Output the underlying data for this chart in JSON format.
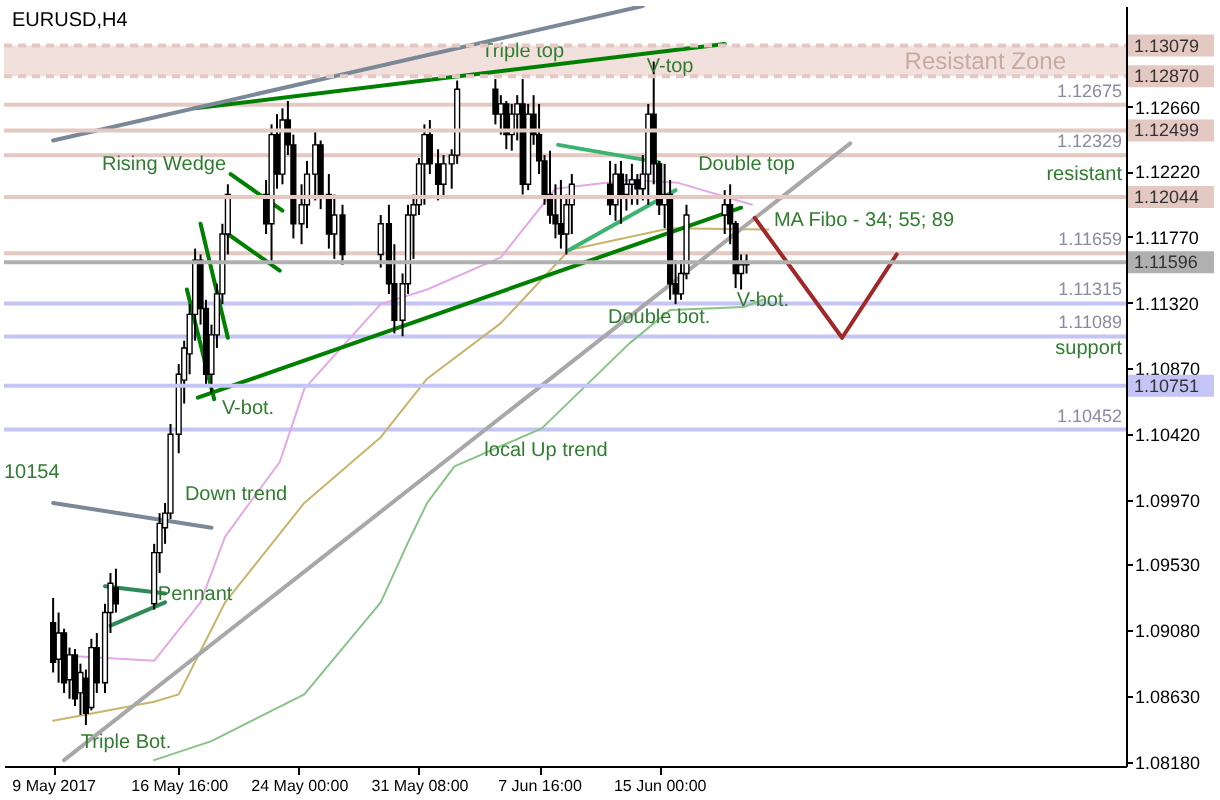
{
  "chart_data": {
    "type": "candlestick",
    "title": "EURUSD,H4",
    "x": [
      "2017-05-09T00:00",
      "2017-05-09T08:00",
      "2017-05-09T16:00",
      "2017-05-10T00:00",
      "2017-05-10T08:00",
      "2017-05-10T16:00",
      "2017-05-11T00:00",
      "2017-05-11T08:00",
      "2017-05-11T16:00",
      "2017-05-12T04:00",
      "2017-05-12T12:00",
      "2017-05-12T20:00",
      "2017-05-15T04:00",
      "2017-05-15T12:00",
      "2017-05-15T20:00",
      "2017-05-16T04:00",
      "2017-05-16T16:00",
      "2017-05-17T00:00",
      "2017-05-17T08:00",
      "2017-05-17T16:00",
      "2017-05-18T00:00",
      "2017-05-18T08:00",
      "2017-05-18T16:00",
      "2017-05-19T00:00",
      "2017-05-19T08:00",
      "2017-05-19T16:00",
      "2017-05-22T00:00",
      "2017-05-22T08:00",
      "2017-05-22T16:00",
      "2017-05-23T00:00",
      "2017-05-23T08:00",
      "2017-05-23T16:00",
      "2017-05-24T04:00",
      "2017-05-24T12:00",
      "2017-05-25T00:00",
      "2017-05-25T08:00",
      "2017-05-25T20:00",
      "2017-05-26T04:00",
      "2017-05-26T16:00",
      "2017-05-29T00:00",
      "2017-05-29T12:00",
      "2017-05-29T20:00",
      "2017-05-30T08:00",
      "2017-05-30T16:00",
      "2017-05-31T00:00",
      "2017-05-31T08:00",
      "2017-05-31T16:00",
      "2017-06-01T00:00",
      "2017-06-01T12:00",
      "2017-06-01T20:00",
      "2017-06-02T08:00",
      "2017-06-02T16:00",
      "2017-06-05T00:00",
      "2017-06-05T08:00",
      "2017-06-05T16:00",
      "2017-06-06T00:00",
      "2017-06-06T08:00",
      "2017-06-06T16:00",
      "2017-06-07T00:00",
      "2017-06-07T08:00",
      "2017-06-07T16:00",
      "2017-06-08T00:00",
      "2017-06-08T08:00",
      "2017-06-08T16:00",
      "2017-06-09T00:00",
      "2017-06-09T08:00",
      "2017-06-09T16:00",
      "2017-06-12T00:00",
      "2017-06-12T08:00",
      "2017-06-12T16:00",
      "2017-06-13T00:00",
      "2017-06-13T08:00",
      "2017-06-13T16:00",
      "2017-06-14T00:00",
      "2017-06-14T08:00",
      "2017-06-14T16:00",
      "2017-06-15T00:00",
      "2017-06-15T08:00",
      "2017-06-15T16:00",
      "2017-06-16T00:00",
      "2017-06-16T08:00",
      "2017-06-16T16:00",
      "2017-06-19T00:00",
      "2017-06-19T08:00",
      "2017-06-19T16:00",
      "2017-06-20T00:00",
      "2017-06-20T08:00"
    ],
    "ohlc": [
      [
        1.0913,
        1.093,
        1.0879,
        1.0886
      ],
      [
        1.0888,
        1.092,
        1.0872,
        1.0906
      ],
      [
        1.0906,
        1.0909,
        1.0865,
        1.0872
      ],
      [
        1.0874,
        1.0896,
        1.0861,
        1.0891
      ],
      [
        1.0891,
        1.0895,
        1.0856,
        1.0861
      ],
      [
        1.0865,
        1.0885,
        1.085,
        1.0879
      ],
      [
        1.0875,
        1.0881,
        1.0843,
        1.0851
      ],
      [
        1.0855,
        1.0902,
        1.0853,
        1.0896
      ],
      [
        1.0896,
        1.0906,
        1.0865,
        1.0872
      ],
      [
        1.0872,
        1.0926,
        1.0865,
        1.092
      ],
      [
        1.092,
        1.0947,
        1.0906,
        1.094
      ],
      [
        1.0937,
        1.095,
        1.092,
        1.0926
      ],
      [
        1.0926,
        1.0967,
        1.0922,
        1.0961
      ],
      [
        1.0961,
        1.0988,
        1.0947,
        1.0981
      ],
      [
        1.0978,
        1.0995,
        1.0967,
        1.0988
      ],
      [
        1.0988,
        1.1049,
        1.0984,
        1.1042
      ],
      [
        1.1042,
        1.109,
        1.1029,
        1.1083
      ],
      [
        1.1079,
        1.1106,
        1.1063,
        1.1101
      ],
      [
        1.1097,
        1.1131,
        1.1083,
        1.1124
      ],
      [
        1.1124,
        1.1169,
        1.1106,
        1.1161
      ],
      [
        1.1161,
        1.1165,
        1.1117,
        1.1128
      ],
      [
        1.1128,
        1.1134,
        1.1076,
        1.1083
      ],
      [
        1.1083,
        1.1117,
        1.107,
        1.111
      ],
      [
        1.111,
        1.1145,
        1.1101,
        1.1138
      ],
      [
        1.1138,
        1.1186,
        1.1131,
        1.1179
      ],
      [
        1.1179,
        1.1213,
        1.1165,
        1.1206
      ],
      [
        1.1206,
        1.1216,
        1.1179,
        1.1186
      ],
      [
        1.1186,
        1.1254,
        1.1158,
        1.1247
      ],
      [
        1.1247,
        1.1261,
        1.121,
        1.122
      ],
      [
        1.122,
        1.1265,
        1.1213,
        1.1257
      ],
      [
        1.1257,
        1.127,
        1.1233,
        1.124
      ],
      [
        1.124,
        1.1247,
        1.1176,
        1.1186
      ],
      [
        1.1186,
        1.1213,
        1.1172,
        1.1199
      ],
      [
        1.1199,
        1.1229,
        1.1183,
        1.122
      ],
      [
        1.122,
        1.125,
        1.1202,
        1.124
      ],
      [
        1.124,
        1.1243,
        1.1196,
        1.1206
      ],
      [
        1.1206,
        1.122,
        1.1169,
        1.1179
      ],
      [
        1.1179,
        1.1206,
        1.1162,
        1.1192
      ],
      [
        1.1192,
        1.1199,
        1.1158,
        1.1165
      ],
      [
        1.1165,
        1.1192,
        1.1156,
        1.1186
      ],
      [
        1.1186,
        1.1199,
        1.1138,
        1.1145
      ],
      [
        1.1145,
        1.1172,
        1.1111,
        1.112
      ],
      [
        1.112,
        1.1152,
        1.1109,
        1.1145
      ],
      [
        1.1145,
        1.1199,
        1.1138,
        1.1192
      ],
      [
        1.1192,
        1.1206,
        1.1162,
        1.1199
      ],
      [
        1.1199,
        1.1231,
        1.1192,
        1.1227
      ],
      [
        1.1227,
        1.1254,
        1.1199,
        1.1247
      ],
      [
        1.1247,
        1.1257,
        1.122,
        1.1227
      ],
      [
        1.1227,
        1.1237,
        1.1202,
        1.1213
      ],
      [
        1.1213,
        1.1233,
        1.1203,
        1.1227
      ],
      [
        1.1227,
        1.1237,
        1.121,
        1.1233
      ],
      [
        1.1233,
        1.1284,
        1.1227,
        1.1278
      ],
      [
        1.1278,
        1.1285,
        1.1254,
        1.1261
      ],
      [
        1.1261,
        1.1274,
        1.1247,
        1.1268
      ],
      [
        1.1268,
        1.127,
        1.1237,
        1.1247
      ],
      [
        1.1247,
        1.1268,
        1.1236,
        1.1261
      ],
      [
        1.1261,
        1.1274,
        1.1243,
        1.1268
      ],
      [
        1.1268,
        1.1285,
        1.1206,
        1.1213
      ],
      [
        1.1213,
        1.1268,
        1.1209,
        1.1261
      ],
      [
        1.1261,
        1.1274,
        1.124,
        1.1247
      ],
      [
        1.1247,
        1.1268,
        1.122,
        1.1229
      ],
      [
        1.1229,
        1.1233,
        1.1199,
        1.1206
      ],
      [
        1.1206,
        1.1236,
        1.1186,
        1.1192
      ],
      [
        1.1192,
        1.1213,
        1.1176,
        1.1186
      ],
      [
        1.1186,
        1.1216,
        1.1169,
        1.1179
      ],
      [
        1.1179,
        1.1206,
        1.1165,
        1.1199
      ],
      [
        1.1199,
        1.122,
        1.1179,
        1.1213
      ],
      [
        1.1213,
        1.1229,
        1.1192,
        1.1199
      ],
      [
        1.1199,
        1.1227,
        1.1188,
        1.122
      ],
      [
        1.122,
        1.1229,
        1.1186,
        1.1206
      ],
      [
        1.1206,
        1.122,
        1.1195,
        1.1213
      ],
      [
        1.1213,
        1.1227,
        1.1199,
        1.1216
      ],
      [
        1.1216,
        1.122,
        1.1199,
        1.121
      ],
      [
        1.121,
        1.1233,
        1.1202,
        1.122
      ],
      [
        1.122,
        1.1268,
        1.1199,
        1.1261
      ],
      [
        1.1261,
        1.1297,
        1.1213,
        1.1227
      ],
      [
        1.1227,
        1.1229,
        1.1192,
        1.1199
      ],
      [
        1.1199,
        1.1227,
        1.1183,
        1.1206
      ],
      [
        1.1206,
        1.1216,
        1.1134,
        1.1145
      ],
      [
        1.1145,
        1.1161,
        1.1131,
        1.1138
      ],
      [
        1.1138,
        1.1161,
        1.1134,
        1.1152
      ],
      [
        1.1152,
        1.1199,
        1.1148,
        1.1192
      ],
      [
        1.1192,
        1.1209,
        1.1179,
        1.1199
      ],
      [
        1.1199,
        1.1213,
        1.1172,
        1.1186
      ],
      [
        1.1186,
        1.1188,
        1.1142,
        1.1152
      ],
      [
        1.1152,
        1.1165,
        1.1141,
        1.1158
      ],
      [
        1.1158,
        1.1165,
        1.1152,
        1.116
      ]
    ],
    "series": [
      {
        "type": "line",
        "color": "#e4a8e4",
        "x": [
          "2017-05-09T00:00",
          "2017-05-15T04:00",
          "2017-05-18T00:00",
          "2017-05-19T12:00",
          "2017-05-22T20:00",
          "2017-05-24T08:00",
          "2017-05-29T00:00",
          "2017-05-31T20:00",
          "2017-06-05T08:00",
          "2017-06-08T16:00",
          "2017-06-13T04:00",
          "2017-06-16T04:00",
          "2017-06-20T16:00"
        ],
        "values": [
          1.0891,
          1.0887,
          1.0927,
          1.0972,
          1.1023,
          1.1073,
          1.1131,
          1.1141,
          1.1163,
          1.121,
          1.1216,
          1.1214,
          1.1199
        ]
      },
      {
        "type": "line",
        "color": "#c8b46a",
        "x": [
          "2017-05-09T00:00",
          "2017-05-15T04:00",
          "2017-05-16T16:00",
          "2017-05-19T12:00",
          "2017-05-24T08:00",
          "2017-05-29T00:00",
          "2017-05-31T20:00",
          "2017-06-05T08:00",
          "2017-06-09T12:00",
          "2017-06-15T16:00",
          "2017-06-21T16:00"
        ],
        "values": [
          1.0846,
          1.0859,
          1.0864,
          1.0927,
          1.0995,
          1.104,
          1.108,
          1.1118,
          1.1168,
          1.1183,
          1.1182
        ]
      },
      {
        "type": "line",
        "color": "#88c488",
        "x": [
          "2017-05-15T04:00",
          "2017-05-18T16:00",
          "2017-05-24T08:00",
          "2017-05-29T00:00",
          "2017-05-30T16:00",
          "2017-05-31T20:00",
          "2017-06-02T12:00",
          "2017-06-07T20:00",
          "2017-06-13T04:00",
          "2017-06-15T16:00",
          "2017-06-20T04:00",
          "2017-06-21T08:00"
        ],
        "values": [
          1.0819,
          1.0832,
          1.0864,
          1.0927,
          1.0968,
          1.0995,
          1.102,
          1.1046,
          1.1104,
          1.1127,
          1.1129,
          1.1134
        ]
      },
      {
        "type": "line",
        "color": "#008000",
        "x": [
          "2017-05-17T16:00",
          "2017-06-19T00:00"
        ],
        "values": [
          1.1265,
          1.1309
        ]
      },
      {
        "type": "line",
        "color": "#008000",
        "x": [
          "2017-05-17T20:00",
          "2017-06-20T00:00"
        ],
        "values": [
          1.1067,
          1.1197
        ]
      },
      {
        "type": "line",
        "color": "#7a8898",
        "x": [
          "2017-05-09T00:00",
          "2017-06-14T00:00"
        ],
        "values": [
          1.1243,
          1.1335
        ]
      },
      {
        "type": "line",
        "color": "#7a8898",
        "x": [
          "2017-05-09T00:00",
          "2017-05-18T16:00"
        ],
        "values": [
          1.0995,
          1.0978
        ]
      },
      {
        "type": "line",
        "color": "#a8a8a8",
        "x": [
          "2017-05-09T16:00",
          "2017-06-26T16:00"
        ],
        "values": [
          1.0819,
          1.1241
        ]
      },
      {
        "type": "line",
        "color": "#a02828",
        "x": [
          "2017-06-20T20:00",
          "2017-06-26T04:00",
          "2017-06-29T12:00"
        ],
        "values": [
          1.119,
          1.1108,
          1.1165
        ]
      },
      {
        "type": "line",
        "color": "#2e8b57",
        "x": [
          "2017-05-12T04:00",
          "2017-05-15T20:00"
        ],
        "values": [
          1.0938,
          1.0933
        ]
      },
      {
        "type": "line",
        "color": "#2e8b57",
        "x": [
          "2017-05-12T12:00",
          "2017-05-15T20:00"
        ],
        "values": [
          1.0911,
          1.0927
        ]
      },
      {
        "type": "line",
        "color": "#008000",
        "x": [
          "2017-05-17T04:00",
          "2017-05-18T20:00"
        ],
        "values": [
          1.1141,
          1.1066
        ]
      },
      {
        "type": "line",
        "color": "#008000",
        "x": [
          "2017-05-18T00:00",
          "2017-05-19T16:00"
        ],
        "values": [
          1.1186,
          1.1108
        ]
      },
      {
        "type": "line",
        "color": "#008000",
        "x": [
          "2017-05-19T20:00",
          "2017-05-23T00:00"
        ],
        "values": [
          1.122,
          1.1195
        ]
      },
      {
        "type": "line",
        "color": "#008000",
        "x": [
          "2017-05-19T16:00",
          "2017-05-22T20:00"
        ],
        "values": [
          1.1179,
          1.1154
        ]
      },
      {
        "type": "line",
        "color": "#3cb371",
        "x": [
          "2017-06-08T20:00",
          "2017-06-15T00:00"
        ],
        "values": [
          1.124,
          1.1228
        ]
      },
      {
        "type": "line",
        "color": "#3cb371",
        "x": [
          "2017-06-09T12:00",
          "2017-06-16T00:00"
        ],
        "values": [
          1.1168,
          1.1209
        ]
      }
    ],
    "xlim": [
      "2017-05-06T00:00",
      "2017-07-13T12:00"
    ],
    "xticks": [
      {
        "value": "2017-05-09T00:00",
        "label": "9 May 2017"
      },
      {
        "value": "2017-05-16T16:00",
        "label": "16 May 16:00"
      },
      {
        "value": "2017-05-24T00:00",
        "label": "24 May 00:00"
      },
      {
        "value": "2017-05-31T08:00",
        "label": "31 May 08:00"
      },
      {
        "value": "2017-06-07T16:00",
        "label": "7 Jun 16:00"
      },
      {
        "value": "2017-06-15T00:00",
        "label": "15 Jun 00:00"
      }
    ],
    "ylim": [
      1.0815,
      1.1335
    ],
    "yticks": [
      {
        "value": 1.0818,
        "label": "1.08180"
      },
      {
        "value": 1.0863,
        "label": "1.08630"
      },
      {
        "value": 1.0908,
        "label": "1.09080"
      },
      {
        "value": 1.0953,
        "label": "1.09530"
      },
      {
        "value": 1.0997,
        "label": "1.09970"
      },
      {
        "value": 1.1042,
        "label": "1.10420"
      },
      {
        "value": 1.1087,
        "label": "1.10870"
      },
      {
        "value": 1.1132,
        "label": "1.11320"
      },
      {
        "value": 1.1177,
        "label": "1.11770"
      },
      {
        "value": 1.1222,
        "label": "1.12220"
      },
      {
        "value": 1.1266,
        "label": "1.12660"
      }
    ],
    "y2lim": [
      1.0815,
      1.1335
    ],
    "bands": [
      {
        "axis": "y",
        "from": 1.1287,
        "to": 1.13079,
        "label": "Resistant Zone",
        "color": "#f2e0dc"
      }
    ],
    "ref_lines": [
      {
        "axis": "y2",
        "value": 1.13079,
        "label": "1.13079",
        "color": "#e4c8c2",
        "line_style": "dashed"
      },
      {
        "axis": "y2",
        "value": 1.1287,
        "label": "1.12870",
        "color": "#e4c8c2",
        "line_style": "dashed"
      },
      {
        "axis": "y",
        "value": 1.12675,
        "label": "1.12675",
        "color": "#e4c8c2",
        "line_style": "solid"
      },
      {
        "axis": "y2",
        "value": 1.12499,
        "label": "1.12499",
        "color": "#e4c8c2",
        "line_style": "solid"
      },
      {
        "axis": "y",
        "value": 1.12329,
        "label": "1.12329",
        "color": "#e4c8c2",
        "line_style": "solid"
      },
      {
        "axis": "y2",
        "value": 1.12044,
        "label": "1.12044",
        "color": "#e4c8c2",
        "line_style": "solid"
      },
      {
        "axis": "y",
        "value": 1.11659,
        "label": "1.11659",
        "color": "#e4c8c2",
        "line_style": "solid"
      },
      {
        "axis": "y2",
        "value": 1.11596,
        "label": "1.11596",
        "color": "#b0b0b0",
        "line_style": "solid"
      },
      {
        "axis": "y",
        "value": 1.11315,
        "label": "1.11315",
        "color": "#c4c4f6",
        "line_style": "solid"
      },
      {
        "axis": "y",
        "value": 1.11089,
        "label": "1.11089",
        "color": "#c4c4f6",
        "line_style": "solid"
      },
      {
        "axis": "y2",
        "value": 1.10751,
        "label": "1.10751",
        "color": "#c4c4f6",
        "line_style": "solid"
      },
      {
        "axis": "y",
        "value": 1.10452,
        "label": "1.10452",
        "color": "#c4c4f6",
        "line_style": "solid"
      }
    ],
    "annotations": [
      {
        "text": "Triple top",
        "x": "2017-06-06T16:00",
        "y": 1.1304
      },
      {
        "text": "V-top",
        "x": "2017-06-15T16:00",
        "y": 1.1294
      },
      {
        "text": "Double top",
        "x": "2017-06-20T08:00",
        "y": 1.1227
      },
      "MA Fibo - 34; 55; 89",
      {
        "text": "Double bot.",
        "x": "2017-06-15T00:00",
        "y": 1.1122
      },
      {
        "text": "V-bot.",
        "x": "2017-06-21T08:00",
        "y": 1.1134
      },
      "V-bot.",
      "Rising Wedge",
      "Down trend",
      {
        "text": "Pennant",
        "x": "2017-05-17T16:00",
        "y": 1.0933
      },
      "Triple Bot.",
      "local Up trend",
      "resistant",
      "support",
      "10154"
    ]
  }
}
